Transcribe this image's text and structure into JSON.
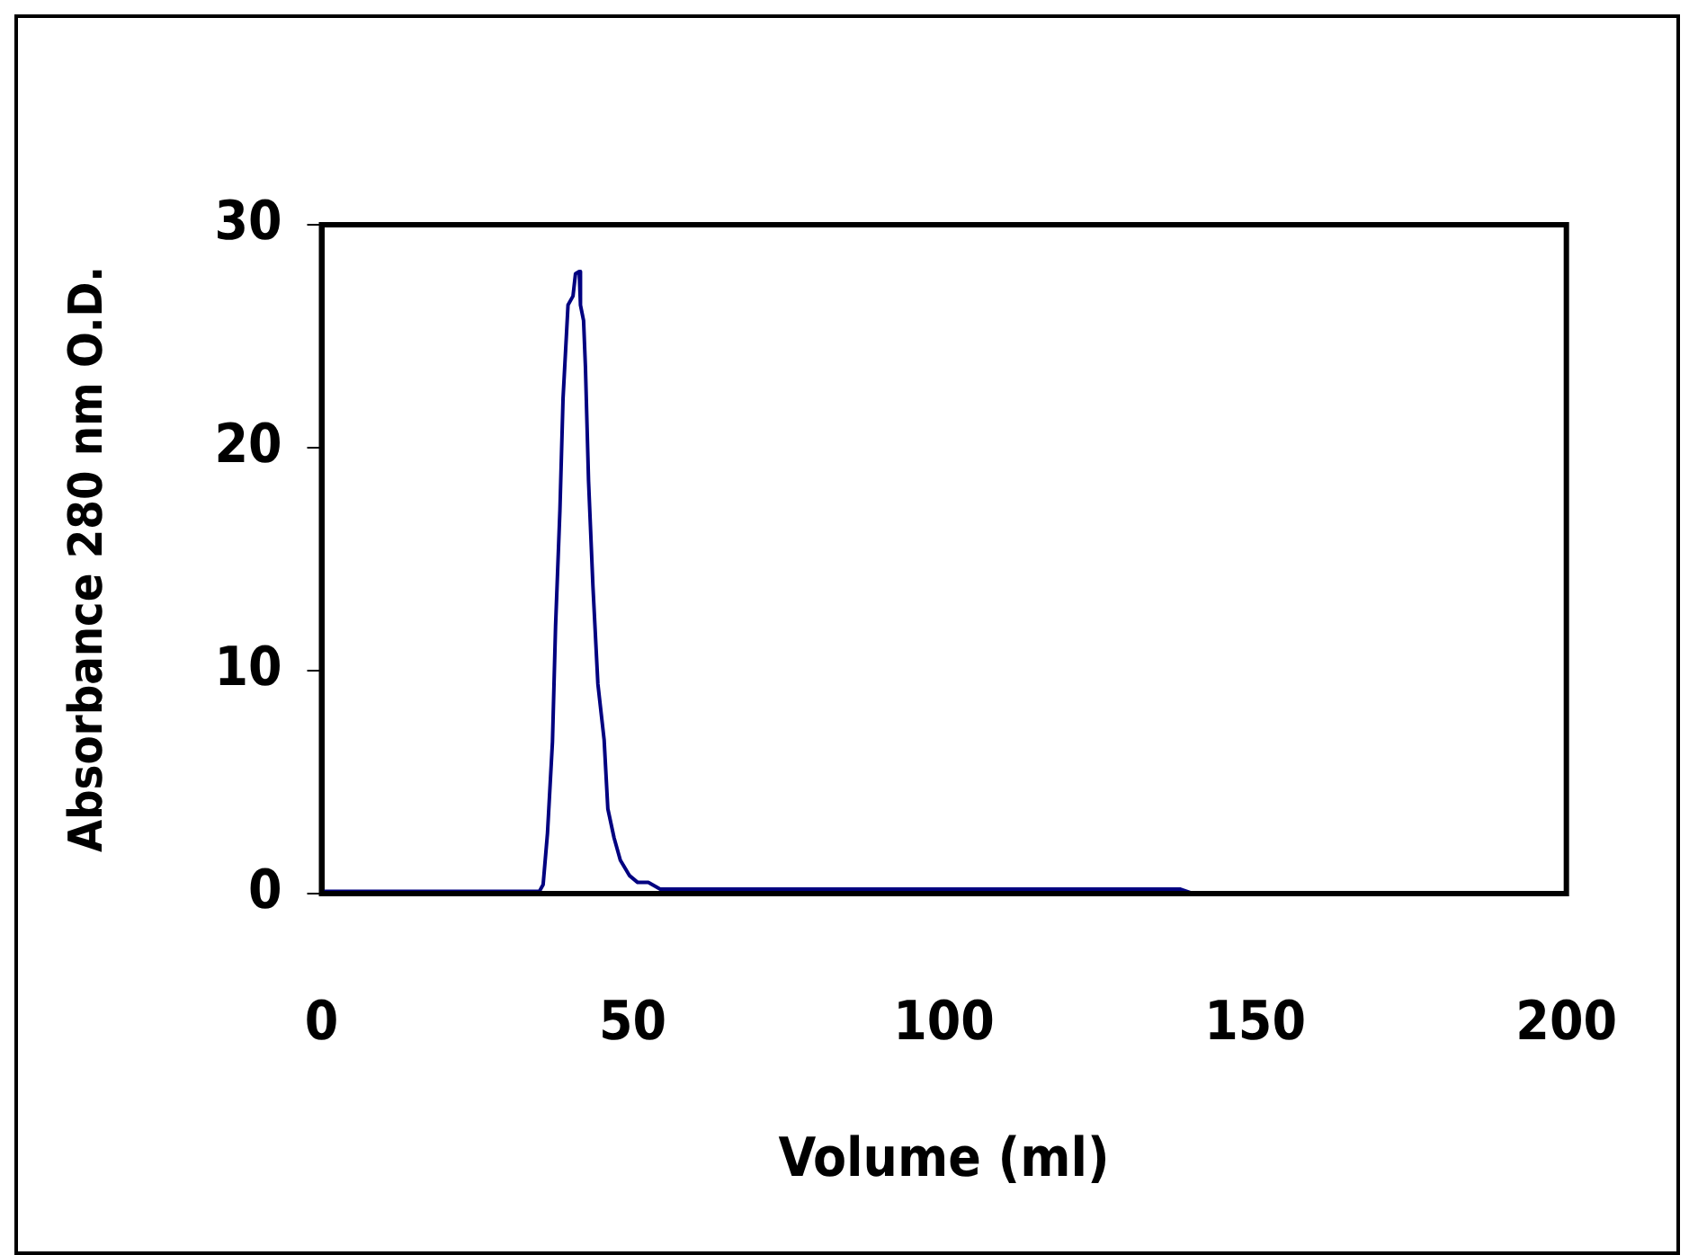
{
  "chart_data": {
    "type": "line",
    "xlabel": "Volume (ml)",
    "ylabel": "Absorbance 280 nm O.D.",
    "series": [
      {
        "color": "#000080",
        "x": [
          0,
          10,
          20,
          30,
          35,
          35.6,
          36.3,
          37.1,
          37.6,
          38.3,
          38.8,
          39.6,
          40.4,
          40.8,
          41.4,
          41.6,
          42.1,
          42.4,
          42.9,
          43.6,
          44.4,
          45.4,
          46,
          47,
          48,
          49.5,
          50.8,
          52.5,
          54.4,
          60,
          80,
          100,
          120,
          138,
          140
        ],
        "values": [
          0.1,
          0.1,
          0.1,
          0.1,
          0.1,
          0.4,
          2.7,
          6.8,
          12,
          17.2,
          22.2,
          26.4,
          26.8,
          27.8,
          27.9,
          26.4,
          25.7,
          23.6,
          18.5,
          13.8,
          9.4,
          6.9,
          3.8,
          2.5,
          1.5,
          0.8,
          0.5,
          0.5,
          0.2,
          0.2,
          0.2,
          0.2,
          0.2,
          0.2,
          0
        ]
      }
    ],
    "xlim": [
      0,
      200
    ],
    "xticks": [
      0,
      50,
      100,
      150,
      200
    ],
    "ylim": [
      0,
      30
    ],
    "yticks": [
      0,
      10,
      20,
      30
    ],
    "grid": false,
    "legend": false,
    "marker": "none",
    "line_style": "solid"
  }
}
